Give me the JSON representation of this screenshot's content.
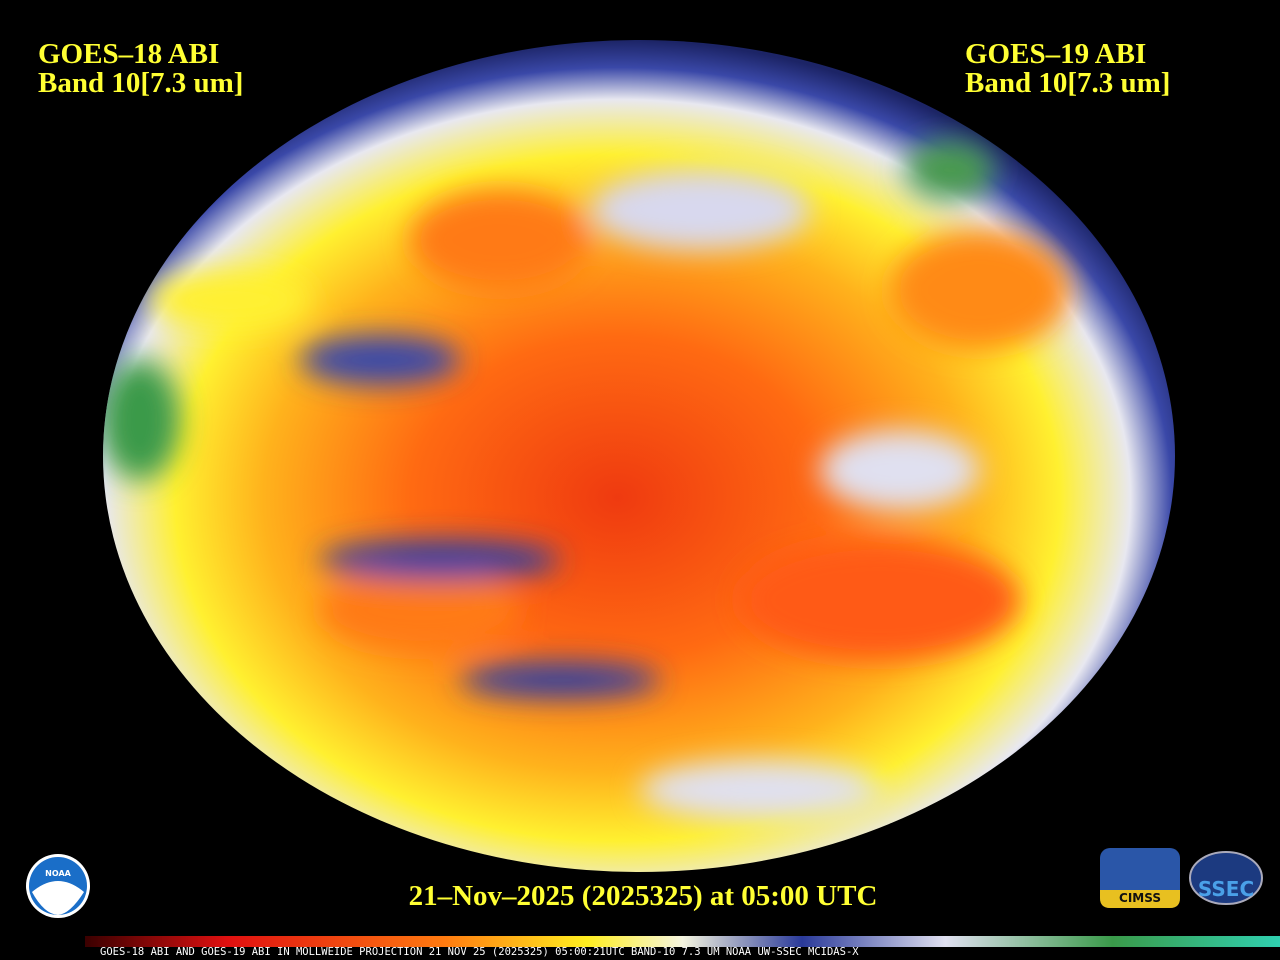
{
  "header": {
    "left": {
      "line1": "GOES–18 ABI",
      "line2": "Band 10[7.3 um]"
    },
    "right": {
      "line1": "GOES–19 ABI",
      "line2": "Band 10[7.3 um]"
    }
  },
  "footer": {
    "timestamp": "21–Nov–2025 (2025325) at 05:00 UTC",
    "caption": "GOES-18 ABI AND GOES-19 ABI IN MOLLWEIDE PROJECTION 21 NOV 25 (2025325) 05:00:21UTC BAND-10 7.3 UM NOAA UW-SSEC MCIDAS-X"
  },
  "logos": {
    "noaa": "NOAA",
    "cimss": "CIMSS",
    "ssec": "SSEC"
  }
}
